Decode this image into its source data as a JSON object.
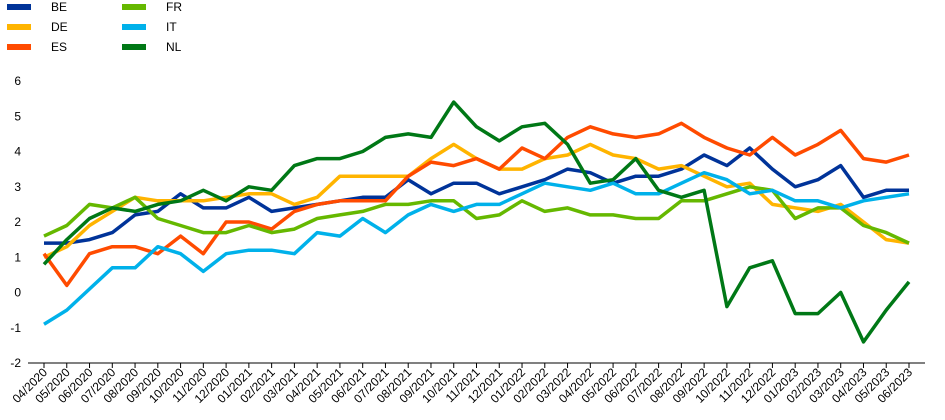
{
  "chart_data": {
    "type": "line",
    "x": [
      "04/2020",
      "05/2020",
      "06/2020",
      "07/2020",
      "08/2020",
      "09/2020",
      "10/2020",
      "11/2020",
      "12/2020",
      "01/2021",
      "02/2021",
      "03/2021",
      "04/2021",
      "05/2021",
      "06/2021",
      "07/2021",
      "08/2021",
      "09/2021",
      "10/2021",
      "11/2021",
      "12/2021",
      "01/2022",
      "02/2022",
      "03/2022",
      "04/2022",
      "05/2022",
      "06/2022",
      "07/2022",
      "08/2022",
      "09/2022",
      "10/2022",
      "11/2022",
      "12/2022",
      "01/2023",
      "02/2023",
      "03/2023",
      "04/2023",
      "05/2023",
      "06/2023"
    ],
    "yticks": [
      "6",
      "5",
      "4",
      "3",
      "2",
      "1",
      "0",
      "-1",
      "-2"
    ],
    "ylim": [
      -2,
      6
    ],
    "grid": false,
    "legend_position": "top-left",
    "series": [
      {
        "name": "BE",
        "color": "#003399",
        "values": [
          1.4,
          1.4,
          1.5,
          1.7,
          2.2,
          2.3,
          2.8,
          2.4,
          2.4,
          2.7,
          2.3,
          2.4,
          2.5,
          2.6,
          2.7,
          2.7,
          3.2,
          2.8,
          3.1,
          3.1,
          2.8,
          3.0,
          3.2,
          3.5,
          3.4,
          3.1,
          3.3,
          3.3,
          3.5,
          3.9,
          3.6,
          4.1,
          3.5,
          3.0,
          3.2,
          3.6,
          2.7,
          2.9,
          2.9
        ]
      },
      {
        "name": "DE",
        "color": "#ffb400",
        "values": [
          1.0,
          1.3,
          1.9,
          2.3,
          2.7,
          2.6,
          2.6,
          2.6,
          2.7,
          2.8,
          2.8,
          2.5,
          2.7,
          3.3,
          3.3,
          3.3,
          3.3,
          3.8,
          4.2,
          3.8,
          3.5,
          3.5,
          3.8,
          3.9,
          4.2,
          3.9,
          3.8,
          3.5,
          3.6,
          3.3,
          3.0,
          3.1,
          2.5,
          2.4,
          2.3,
          2.5,
          2.0,
          1.5,
          1.4
        ]
      },
      {
        "name": "ES",
        "color": "#ff4b00",
        "values": [
          1.1,
          0.2,
          1.1,
          1.3,
          1.3,
          1.1,
          1.6,
          1.1,
          2.0,
          2.0,
          1.8,
          2.3,
          2.5,
          2.6,
          2.6,
          2.6,
          3.3,
          3.7,
          3.6,
          3.8,
          3.5,
          4.1,
          3.8,
          4.4,
          4.7,
          4.5,
          4.4,
          4.5,
          4.8,
          4.4,
          4.1,
          3.9,
          4.4,
          3.9,
          4.2,
          4.6,
          3.8,
          3.7,
          3.9
        ]
      },
      {
        "name": "FR",
        "color": "#65b800",
        "values": [
          1.6,
          1.9,
          2.5,
          2.4,
          2.7,
          2.1,
          1.9,
          1.7,
          1.7,
          1.9,
          1.7,
          1.8,
          2.1,
          2.2,
          2.3,
          2.5,
          2.5,
          2.6,
          2.6,
          2.1,
          2.2,
          2.6,
          2.3,
          2.4,
          2.2,
          2.2,
          2.1,
          2.1,
          2.6,
          2.6,
          2.8,
          3.0,
          2.9,
          2.1,
          2.4,
          2.4,
          1.9,
          1.7,
          1.4
        ]
      },
      {
        "name": "IT",
        "color": "#00b1ea",
        "values": [
          -0.9,
          -0.5,
          0.1,
          0.7,
          0.7,
          1.3,
          1.1,
          0.6,
          1.1,
          1.2,
          1.2,
          1.1,
          1.7,
          1.6,
          2.1,
          1.7,
          2.2,
          2.5,
          2.3,
          2.5,
          2.5,
          2.8,
          3.1,
          3.0,
          2.9,
          3.1,
          2.8,
          2.8,
          3.1,
          3.4,
          3.2,
          2.8,
          2.9,
          2.6,
          2.6,
          2.4,
          2.6,
          2.7,
          2.8
        ]
      },
      {
        "name": "NL",
        "color": "#007816",
        "values": [
          0.8,
          1.5,
          2.1,
          2.4,
          2.3,
          2.5,
          2.6,
          2.9,
          2.6,
          3.0,
          2.9,
          3.6,
          3.8,
          3.8,
          4.0,
          4.4,
          4.5,
          4.4,
          5.4,
          4.7,
          4.3,
          4.7,
          4.8,
          4.2,
          3.1,
          3.2,
          3.8,
          2.9,
          2.7,
          2.9,
          -0.4,
          0.7,
          0.9,
          -0.6,
          -0.6,
          0.0,
          -1.4,
          -0.5,
          0.3
        ]
      }
    ]
  }
}
